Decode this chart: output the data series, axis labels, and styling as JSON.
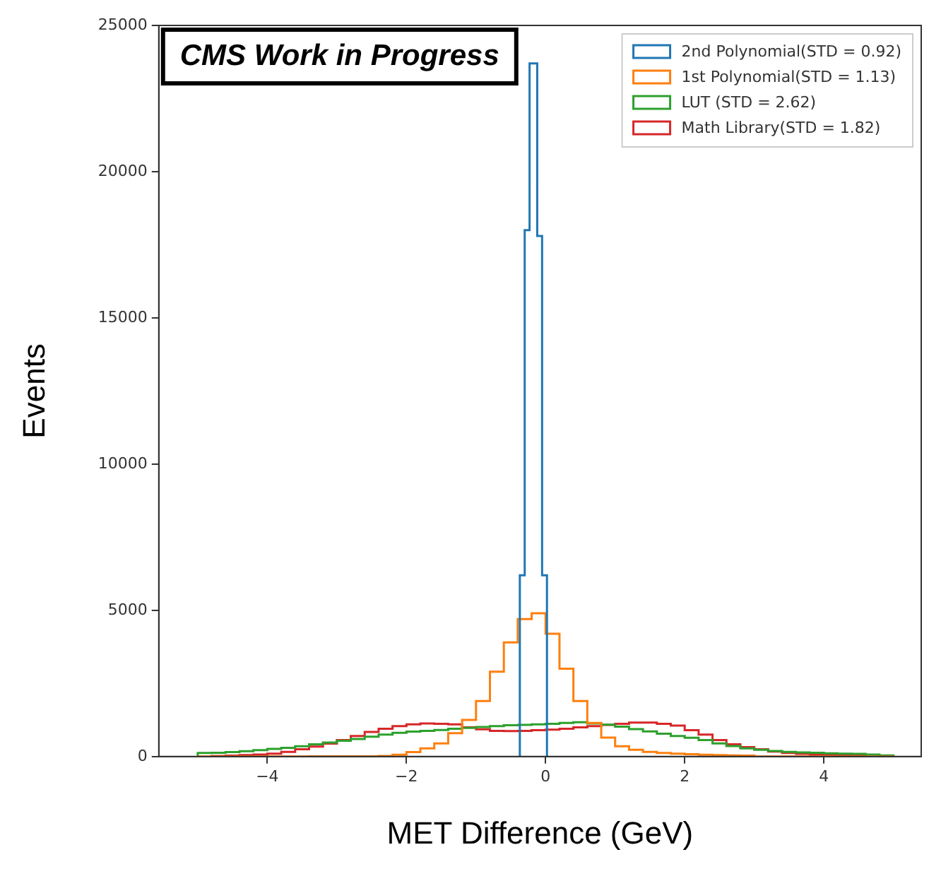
{
  "chart_data": {
    "type": "histogram",
    "xlabel": "MET Difference (GeV)",
    "ylabel": "Events",
    "annotations": [
      "CMS Work in Progress"
    ],
    "bins": [
      -5,
      -4.8,
      -4.6,
      -4.4,
      -4.2,
      -4,
      -3.8,
      -3.6,
      -3.4,
      -3.2,
      -3,
      -2.8,
      -2.6,
      -2.4,
      -2.2,
      -2,
      -1.8,
      -1.6,
      -1.4,
      -1.2,
      -1,
      -0.8,
      -0.6,
      -0.4,
      -0.2,
      0,
      0.2,
      0.4,
      0.6,
      0.8,
      1,
      1.2,
      1.4,
      1.6,
      1.8,
      2,
      2.2,
      2.4,
      2.6,
      2.8,
      3,
      3.2,
      3.4,
      3.6,
      3.8,
      4,
      4.2,
      4.4,
      4.6,
      4.8,
      5
    ],
    "series": [
      {
        "name": "2nd Polynomial(STD = 0.92)",
        "color": "#1f77b4",
        "bins": [
          -0.37,
          -0.3,
          -0.23,
          -0.12,
          -0.05,
          0.02
        ],
        "values": [
          6200,
          18000,
          23700,
          17800,
          6200
        ]
      },
      {
        "name": "1st Polynomial(STD = 1.13)",
        "color": "#ff7f0e",
        "values": [
          0,
          0,
          0,
          0,
          0,
          0,
          0,
          0,
          10,
          10,
          10,
          10,
          10,
          20,
          60,
          150,
          280,
          450,
          800,
          1250,
          1900,
          2900,
          3900,
          4700,
          4900,
          4200,
          3000,
          1900,
          1150,
          650,
          350,
          230,
          160,
          120,
          100,
          80,
          60,
          50,
          40,
          30,
          0,
          0,
          0,
          0,
          0,
          0,
          0,
          0,
          0,
          0
        ]
      },
      {
        "name": "LUT (STD = 2.62)",
        "color": "#2ca02c",
        "values": [
          120,
          130,
          150,
          180,
          220,
          260,
          300,
          350,
          420,
          480,
          540,
          600,
          680,
          750,
          810,
          850,
          880,
          910,
          950,
          980,
          1010,
          1040,
          1070,
          1080,
          1100,
          1120,
          1150,
          1170,
          1130,
          1090,
          1020,
          940,
          860,
          780,
          700,
          640,
          560,
          450,
          360,
          280,
          230,
          190,
          160,
          140,
          130,
          110,
          100,
          90,
          70,
          40
        ]
      },
      {
        "name": "Math Library(STD = 1.82)",
        "color": "#d62728",
        "bins": [
          -4.8,
          -4.6,
          -4.4,
          -4.2,
          -4,
          -3.8,
          -3.6,
          -3.4,
          -3.2,
          -3,
          -2.8,
          -2.6,
          -2.4,
          -2.2,
          -2,
          -1.8,
          -1.6,
          -1.4,
          -1.2,
          -1,
          -0.8,
          -0.6,
          -0.4,
          -0.2,
          0,
          0.2,
          0.4,
          0.6,
          0.8,
          1,
          1.2,
          1.4,
          1.6,
          1.8,
          2,
          2.2,
          2.4,
          2.6,
          2.8,
          3,
          3.2,
          3.4,
          3.6,
          3.8,
          4,
          4.2,
          4.4,
          4.6
        ],
        "values": [
          20,
          30,
          50,
          70,
          100,
          160,
          250,
          340,
          440,
          560,
          700,
          840,
          950,
          1040,
          1100,
          1130,
          1120,
          1100,
          1000,
          930,
          880,
          870,
          880,
          900,
          920,
          950,
          1000,
          1040,
          1080,
          1120,
          1160,
          1160,
          1120,
          1060,
          900,
          750,
          560,
          420,
          320,
          250,
          170,
          120,
          90,
          70,
          60,
          50,
          30
        ]
      }
    ],
    "xlim": [
      -5.56,
      5.4
    ],
    "xticks": [
      {
        "value": -4,
        "label": "−4"
      },
      {
        "value": -2,
        "label": "−2"
      },
      0,
      2,
      4
    ],
    "ylim": [
      0,
      25000
    ],
    "yticks": [
      0,
      5000,
      10000,
      15000,
      20000,
      25000
    ],
    "legend": "top right"
  }
}
